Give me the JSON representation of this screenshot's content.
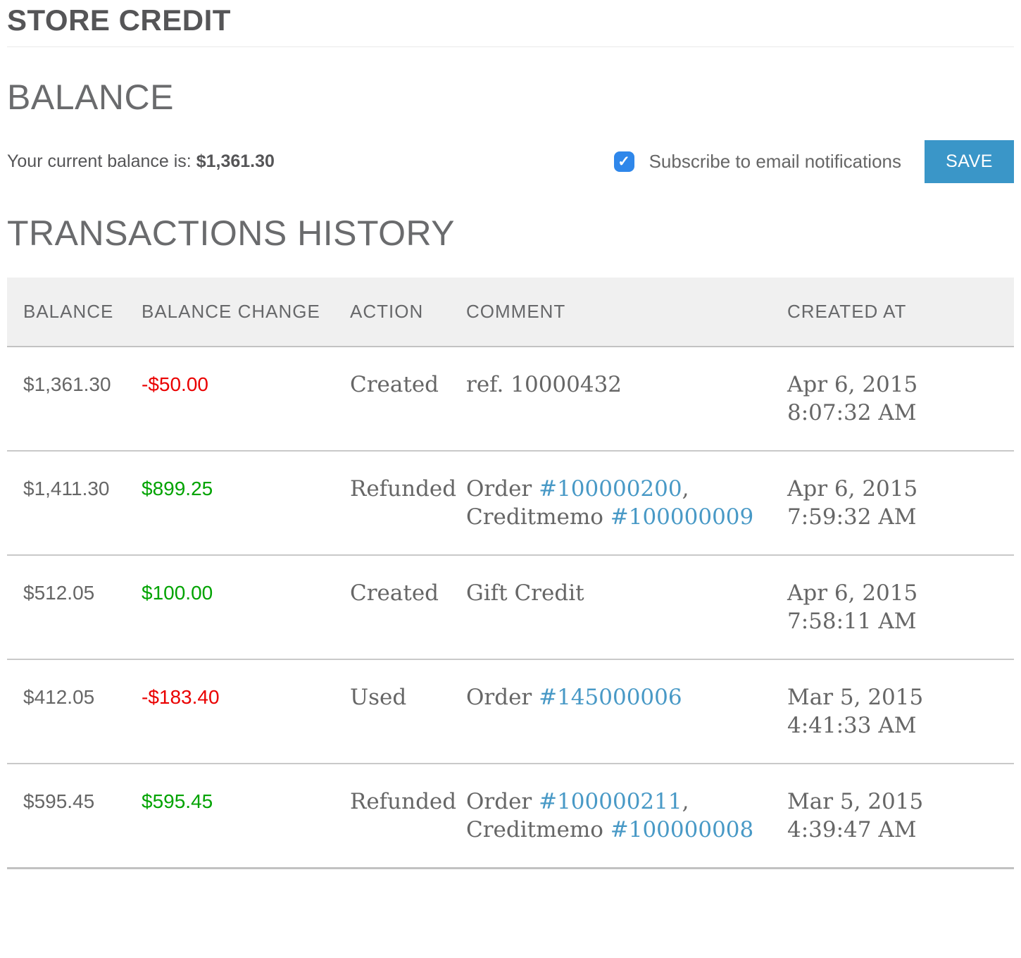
{
  "title": "STORE CREDIT",
  "balance": {
    "heading": "BALANCE",
    "label": "Your current balance is:",
    "value": "$1,361.30",
    "subscribe_label": "Subscribe to email notifications",
    "subscribe_checked": true,
    "save_label": "SAVE"
  },
  "transactions": {
    "heading": "TRANSACTIONS HISTORY",
    "columns": [
      "BALANCE",
      "BALANCE CHANGE",
      "ACTION",
      "COMMENT",
      "CREATED AT"
    ],
    "rows": [
      {
        "balance": "$1,361.30",
        "change": "-$50.00",
        "change_type": "negative",
        "action": "Created",
        "comment": [
          {
            "text": "ref. 10000432",
            "link": false
          }
        ],
        "created_at": "Apr 6, 2015 8:07:32 AM"
      },
      {
        "balance": "$1,411.30",
        "change": "$899.25",
        "change_type": "positive",
        "action": "Refunded",
        "comment": [
          {
            "text": "Order ",
            "link": false
          },
          {
            "text": "#100000200",
            "link": true
          },
          {
            "text": ", Creditmemo ",
            "link": false
          },
          {
            "text": "#100000009",
            "link": true
          }
        ],
        "created_at": "Apr 6, 2015 7:59:32 AM"
      },
      {
        "balance": "$512.05",
        "change": "$100.00",
        "change_type": "positive",
        "action": "Created",
        "comment": [
          {
            "text": "Gift Credit",
            "link": false
          }
        ],
        "created_at": "Apr 6, 2015 7:58:11 AM"
      },
      {
        "balance": "$412.05",
        "change": "-$183.40",
        "change_type": "negative",
        "action": "Used",
        "comment": [
          {
            "text": "Order ",
            "link": false
          },
          {
            "text": "#145000006",
            "link": true
          }
        ],
        "created_at": "Mar 5, 2015 4:41:33 AM"
      },
      {
        "balance": "$595.45",
        "change": "$595.45",
        "change_type": "positive",
        "action": "Refunded",
        "comment": [
          {
            "text": "Order ",
            "link": false
          },
          {
            "text": "#100000211",
            "link": true
          },
          {
            "text": ", Creditmemo ",
            "link": false
          },
          {
            "text": "#100000008",
            "link": true
          }
        ],
        "created_at": "Mar 5, 2015 4:39:47 AM"
      }
    ]
  },
  "colors": {
    "accent_blue": "#3a96c8",
    "checkbox_blue": "#2f87ea",
    "negative_red": "#ea0000",
    "positive_green": "#00a300",
    "link_blue": "#4899c6"
  }
}
